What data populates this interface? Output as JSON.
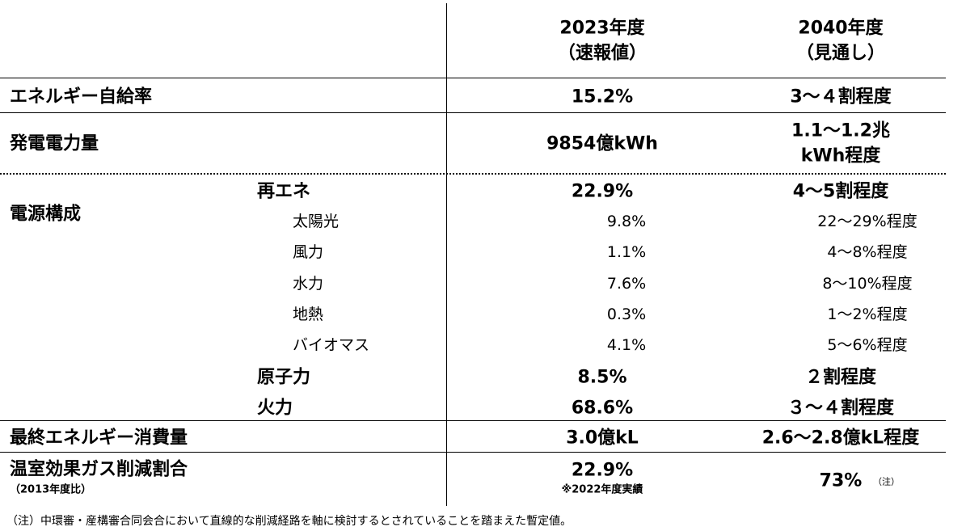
{
  "header": {
    "col1": [
      "2023年度",
      "（速報値）"
    ],
    "col2": [
      "2040年度",
      "（見通し）"
    ]
  },
  "self_sufficiency": {
    "label": "エネルギー自給率",
    "v1": "15.2%",
    "v2": "3～４割程度"
  },
  "generation": {
    "label": "発電電力量",
    "v1": "9854億kWh",
    "v2": [
      "1.1～1.2兆",
      "kWh程度"
    ]
  },
  "power_mix": {
    "label": "電源構成",
    "groups": [
      {
        "name": "再エネ",
        "v1": "22.9%",
        "v2": "4～5割程度",
        "sub": [
          {
            "name": "太陽光",
            "v1": "9.8%",
            "v2": "22～29%程度"
          },
          {
            "name": "風力",
            "v1": "1.1%",
            "v2": "4～8%程度"
          },
          {
            "name": "水力",
            "v1": "7.6%",
            "v2": "8～10%程度"
          },
          {
            "name": "地熱",
            "v1": "0.3%",
            "v2": "1～2%程度"
          },
          {
            "name": "バイオマス",
            "v1": "4.1%",
            "v2": "5～6%程度"
          }
        ]
      },
      {
        "name": "原子力",
        "v1": "8.5%",
        "v2": "２割程度",
        "sub": []
      },
      {
        "name": "火力",
        "v1": "68.6%",
        "v2": "３～４割程度",
        "sub": []
      }
    ]
  },
  "final_consumption": {
    "label": "最終エネルギー消費量",
    "v1": "3.0億kL",
    "v2": "2.6～2.8億kL程度"
  },
  "ghg": {
    "label": "温室効果ガス削減割合",
    "sublabel": "（2013年度比）",
    "v1": "22.9%",
    "v1_note": "※2022年度実績",
    "v2": "73%",
    "v2_note": "（注）"
  },
  "footnote": "（注）中環審・産構審合同会合において直線的な削減経路を軸に検討するとされていることを踏まえた暫定値。"
}
